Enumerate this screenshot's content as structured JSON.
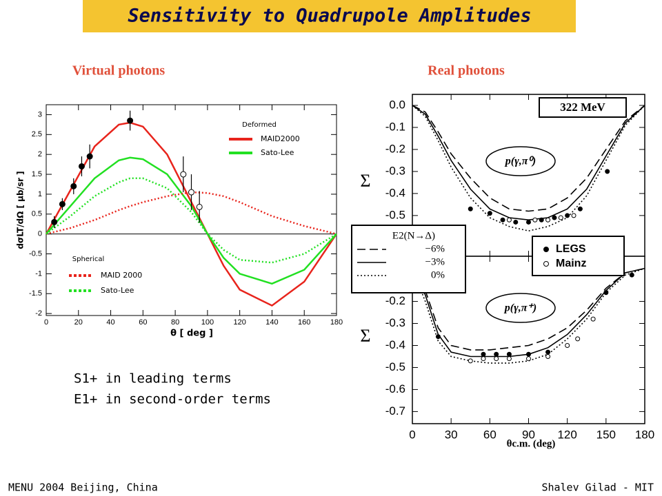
{
  "slide": {
    "title": "Sensitivity to Quadrupole Amplitudes",
    "left_heading": "Virtual photons",
    "right_heading": "Real photons",
    "notes": [
      "S1+ in leading terms",
      "E1+ in second-order terms"
    ],
    "footer_left": "MENU 2004 Beijing, China",
    "footer_right": "Shalev Gilad - MIT"
  },
  "chart_data": [
    {
      "type": "line",
      "x_label": "θ [ deg ]",
      "y_label": "dσLT/dΩ [ μb/sr ]",
      "xlim": [
        0,
        180
      ],
      "ylim": [
        -2.05,
        3.25
      ],
      "xticks": [
        0,
        20,
        40,
        60,
        80,
        100,
        120,
        140,
        160,
        180
      ],
      "yticks": [
        -2,
        -1.5,
        -1,
        -0.5,
        0,
        0.5,
        1,
        1.5,
        2,
        2.5,
        3
      ],
      "show_xtick_labels": true,
      "legend_titles": [
        "Deformed",
        "Spherical"
      ],
      "x": [
        0,
        15,
        30,
        45,
        52,
        60,
        75,
        90,
        100,
        110,
        120,
        140,
        160,
        180
      ],
      "series": [
        {
          "name": "MAID2000",
          "color": "#e8241c",
          "style": "solid",
          "values": [
            0,
            1.1,
            2.2,
            2.75,
            2.8,
            2.7,
            2.0,
            0.8,
            0,
            -0.8,
            -1.4,
            -1.8,
            -1.2,
            0
          ]
        },
        {
          "name": "Sato-Lee",
          "color": "#22e022",
          "style": "solid",
          "values": [
            0,
            0.7,
            1.4,
            1.85,
            1.92,
            1.88,
            1.5,
            0.7,
            0,
            -0.6,
            -1.0,
            -1.25,
            -0.9,
            0
          ]
        },
        {
          "name": "MAID 2000",
          "color": "#e8241c",
          "style": "dotted",
          "values": [
            0,
            0.15,
            0.35,
            0.6,
            0.7,
            0.8,
            0.95,
            1.05,
            1.03,
            0.95,
            0.8,
            0.45,
            0.2,
            0
          ]
        },
        {
          "name": "Sato-Lee",
          "color": "#22e022",
          "style": "dotted",
          "values": [
            0,
            0.45,
            0.95,
            1.3,
            1.4,
            1.4,
            1.15,
            0.55,
            0,
            -0.4,
            -0.65,
            -0.72,
            -0.5,
            0
          ]
        }
      ],
      "points": [
        {
          "marker": "filled",
          "x": [
            5,
            10,
            17,
            22,
            27,
            52
          ],
          "y": [
            0.3,
            0.75,
            1.2,
            1.7,
            1.95,
            2.85
          ],
          "err": [
            0.15,
            0.15,
            0.2,
            0.25,
            0.3,
            0.25
          ]
        },
        {
          "marker": "open",
          "x": [
            85,
            90,
            95
          ],
          "y": [
            1.5,
            1.05,
            0.68
          ],
          "err": [
            0.45,
            0.45,
            0.4
          ]
        }
      ]
    },
    {
      "type": "line",
      "y_label": "Σ",
      "xlim": [
        0,
        180
      ],
      "ylim": [
        -0.685,
        0.05
      ],
      "xticks": [
        0,
        30,
        60,
        90,
        120,
        150,
        180
      ],
      "yticks": [
        {
          "value": 0,
          "label": "0.0"
        },
        -0.1,
        -0.2,
        -0.3,
        -0.4,
        -0.5
      ],
      "show_xtick_labels": false,
      "legend_title": "E2(N→Δ)",
      "annotations": [
        "322 MeV",
        "p(γ,π⁰)"
      ],
      "x": [
        0,
        10,
        20,
        30,
        45,
        60,
        75,
        90,
        105,
        120,
        135,
        150,
        165,
        180
      ],
      "series": [
        {
          "name": "−6%",
          "color": "#000000",
          "style": "dashed",
          "values": [
            0,
            -0.03,
            -0.12,
            -0.22,
            -0.33,
            -0.42,
            -0.47,
            -0.48,
            -0.47,
            -0.42,
            -0.33,
            -0.2,
            -0.07,
            0
          ]
        },
        {
          "name": "−3%",
          "color": "#000000",
          "style": "solid",
          "values": [
            0,
            -0.04,
            -0.14,
            -0.25,
            -0.38,
            -0.47,
            -0.51,
            -0.52,
            -0.51,
            -0.47,
            -0.38,
            -0.23,
            -0.08,
            0
          ]
        },
        {
          "name": "0%",
          "color": "#000000",
          "style": "dotted",
          "values": [
            0,
            -0.05,
            -0.16,
            -0.28,
            -0.42,
            -0.51,
            -0.55,
            -0.57,
            -0.55,
            -0.51,
            -0.41,
            -0.25,
            -0.09,
            0
          ]
        }
      ],
      "points": [
        {
          "name": "LEGS",
          "marker": "filled",
          "x": [
            45,
            60,
            70,
            80,
            90,
            100,
            110,
            120,
            130,
            151
          ],
          "y": [
            -0.47,
            -0.49,
            -0.52,
            -0.53,
            -0.53,
            -0.52,
            -0.51,
            -0.5,
            -0.47,
            -0.3
          ]
        },
        {
          "name": "Mainz",
          "marker": "open",
          "x": [
            75,
            95,
            105,
            115,
            125
          ],
          "y": [
            -0.52,
            -0.52,
            -0.52,
            -0.51,
            -0.5
          ]
        }
      ]
    },
    {
      "type": "line",
      "x_label": "θc.m. (deg)",
      "y_label": "Σ",
      "xlim": [
        0,
        180
      ],
      "ylim": [
        -0.755,
        0.005
      ],
      "xticks": [
        0,
        30,
        60,
        90,
        120,
        150,
        180
      ],
      "yticks": [
        -0.2,
        -0.3,
        -0.4,
        -0.5,
        -0.6,
        -0.7
      ],
      "show_xtick_labels": true,
      "annotations": [
        "p(γ,π⁺)"
      ],
      "x": [
        0,
        10,
        20,
        30,
        45,
        60,
        75,
        90,
        105,
        120,
        135,
        150,
        165,
        180
      ],
      "series": [
        {
          "color": "#000000",
          "style": "dashed",
          "values": [
            -0.05,
            -0.15,
            -0.32,
            -0.4,
            -0.42,
            -0.42,
            -0.41,
            -0.4,
            -0.37,
            -0.32,
            -0.24,
            -0.14,
            -0.07,
            -0.05
          ]
        },
        {
          "color": "#000000",
          "style": "solid",
          "values": [
            -0.05,
            -0.17,
            -0.35,
            -0.43,
            -0.45,
            -0.45,
            -0.45,
            -0.44,
            -0.41,
            -0.35,
            -0.26,
            -0.15,
            -0.07,
            -0.05
          ]
        },
        {
          "color": "#000000",
          "style": "dotted",
          "values": [
            -0.05,
            -0.2,
            -0.38,
            -0.45,
            -0.47,
            -0.48,
            -0.48,
            -0.47,
            -0.44,
            -0.37,
            -0.28,
            -0.16,
            -0.08,
            -0.05
          ]
        }
      ],
      "points": [
        {
          "marker": "filled",
          "x": [
            20,
            55,
            65,
            75,
            90,
            105,
            150,
            170
          ],
          "y": [
            -0.36,
            -0.44,
            -0.44,
            -0.44,
            -0.44,
            -0.43,
            -0.16,
            -0.08
          ]
        },
        {
          "marker": "open",
          "x": [
            45,
            55,
            65,
            75,
            90,
            105,
            120,
            128,
            140
          ],
          "y": [
            -0.47,
            -0.46,
            -0.46,
            -0.46,
            -0.46,
            -0.45,
            -0.4,
            -0.37,
            -0.28
          ]
        }
      ]
    }
  ]
}
